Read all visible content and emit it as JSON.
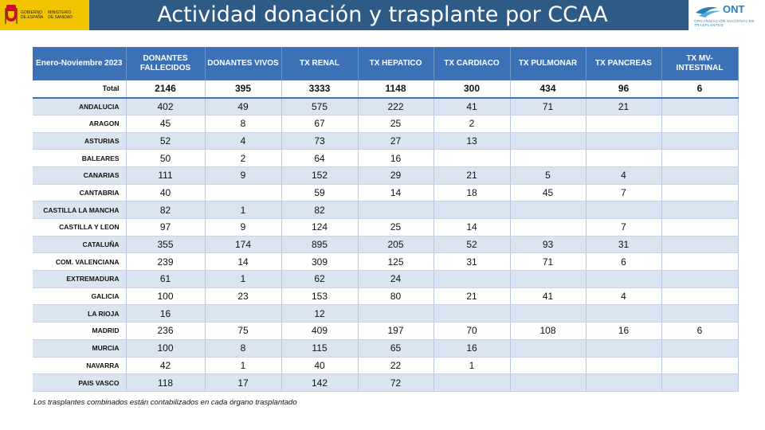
{
  "header": {
    "title": "Actividad donación y trasplante por CCAA",
    "gov_logo_text_left": [
      "GOBIERNO",
      "DE ESPAÑA"
    ],
    "gov_logo_text_right": [
      "MINISTERIO",
      "DE SANIDAD"
    ],
    "ont_logo_name": "ONT",
    "ont_logo_subtitle": "ORGANIZACIÓN NACIONAL DE TRASPLANTES",
    "colors": {
      "bar": "#2e5a86",
      "gov_yellow": "#f2c400",
      "ont_blue": "#2b7fb8"
    }
  },
  "table": {
    "period_header": "Enero-Noviembre 2023",
    "columns": [
      "DONANTES FALLECIDOS",
      "DONANTES VIVOS",
      "TX RENAL",
      "TX HEPATICO",
      "TX CARDIACO",
      "TX PULMONAR",
      "TX PANCREAS",
      "TX MV-INTESTINAL"
    ],
    "rows": [
      {
        "region": "Total",
        "values": [
          "2146",
          "395",
          "3333",
          "1148",
          "300",
          "434",
          "96",
          "6"
        ]
      },
      {
        "region": "ANDALUCIA",
        "values": [
          "402",
          "49",
          "575",
          "222",
          "41",
          "71",
          "21",
          ""
        ]
      },
      {
        "region": "ARAGON",
        "values": [
          "45",
          "8",
          "67",
          "25",
          "2",
          "",
          "",
          ""
        ]
      },
      {
        "region": "ASTURIAS",
        "values": [
          "52",
          "4",
          "73",
          "27",
          "13",
          "",
          "",
          ""
        ]
      },
      {
        "region": "BALEARES",
        "values": [
          "50",
          "2",
          "64",
          "16",
          "",
          "",
          "",
          ""
        ]
      },
      {
        "region": "CANARIAS",
        "values": [
          "111",
          "9",
          "152",
          "29",
          "21",
          "5",
          "4",
          ""
        ]
      },
      {
        "region": "CANTABRIA",
        "values": [
          "40",
          "",
          "59",
          "14",
          "18",
          "45",
          "7",
          ""
        ]
      },
      {
        "region": "CASTILLA LA MANCHA",
        "values": [
          "82",
          "1",
          "82",
          "",
          "",
          "",
          "",
          ""
        ]
      },
      {
        "region": "CASTILLA Y LEON",
        "values": [
          "97",
          "9",
          "124",
          "25",
          "14",
          "",
          "7",
          ""
        ]
      },
      {
        "region": "CATALUÑA",
        "values": [
          "355",
          "174",
          "895",
          "205",
          "52",
          "93",
          "31",
          ""
        ]
      },
      {
        "region": "COM. VALENCIANA",
        "values": [
          "239",
          "14",
          "309",
          "125",
          "31",
          "71",
          "6",
          ""
        ]
      },
      {
        "region": "EXTREMADURA",
        "values": [
          "61",
          "1",
          "62",
          "24",
          "",
          "",
          "",
          ""
        ]
      },
      {
        "region": "GALICIA",
        "values": [
          "100",
          "23",
          "153",
          "80",
          "21",
          "41",
          "4",
          ""
        ]
      },
      {
        "region": "LA RIOJA",
        "values": [
          "16",
          "",
          "12",
          "",
          "",
          "",
          "",
          ""
        ]
      },
      {
        "region": "MADRID",
        "values": [
          "236",
          "75",
          "409",
          "197",
          "70",
          "108",
          "16",
          "6"
        ]
      },
      {
        "region": "MURCIA",
        "values": [
          "100",
          "8",
          "115",
          "65",
          "16",
          "",
          "",
          ""
        ]
      },
      {
        "region": "NAVARRA",
        "values": [
          "42",
          "1",
          "40",
          "22",
          "1",
          "",
          "",
          ""
        ]
      },
      {
        "region": "PAIS VASCO",
        "values": [
          "118",
          "17",
          "142",
          "72",
          "",
          "",
          "",
          ""
        ]
      }
    ],
    "colors": {
      "header_bg": "#3d71b5",
      "stripe": "#dbe5f1"
    }
  },
  "footnote": "Los trasplantes combinados están contabilizados en cada órgano trasplantado"
}
